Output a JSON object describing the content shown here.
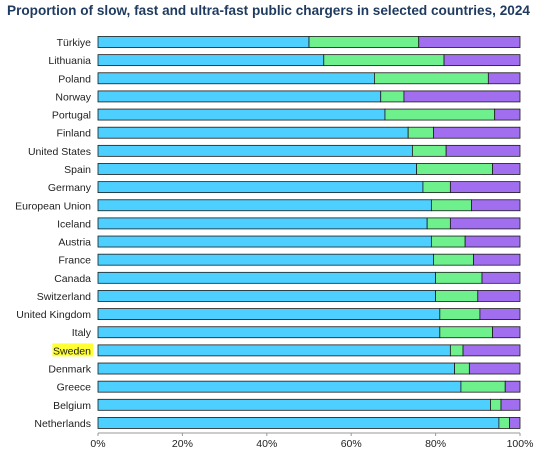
{
  "title": "Proportion of slow, fast and ultra-fast public chargers in selected countries, 2024",
  "highlight_category": "Sweden",
  "colors": {
    "slow": "#4dcfff",
    "fast": "#6ef08c",
    "ultra_fast": "#a26ef0",
    "highlight": "#ffff33"
  },
  "chart_data": {
    "type": "bar",
    "orientation": "horizontal",
    "stacked": true,
    "title": "Proportion of slow, fast and ultra-fast public chargers in selected countries, 2024",
    "xlim": [
      0,
      100
    ],
    "x_ticks": [
      "0%",
      "20%",
      "40%",
      "60%",
      "80%",
      "100%"
    ],
    "grid": false,
    "legend": "none",
    "categories": [
      "Türkiye",
      "Lithuania",
      "Poland",
      "Norway",
      "Portugal",
      "Finland",
      "United States",
      "Spain",
      "Germany",
      "European Union",
      "Iceland",
      "Austria",
      "France",
      "Canada",
      "Switzerland",
      "United Kingdom",
      "Italy",
      "Sweden",
      "Denmark",
      "Greece",
      "Belgium",
      "Netherlands"
    ],
    "series": [
      {
        "key": "slow",
        "values": [
          50,
          53.5,
          65.5,
          67,
          68,
          73.5,
          74.5,
          75.5,
          77,
          79,
          78,
          79,
          79.5,
          80,
          80,
          81,
          81,
          83.5,
          84.5,
          86,
          93,
          95
        ]
      },
      {
        "key": "fast",
        "values": [
          26,
          28.5,
          27,
          5.5,
          26,
          6,
          8,
          18,
          6.5,
          9.5,
          5.5,
          8,
          9.5,
          11,
          10,
          9.5,
          12.5,
          3,
          3.5,
          10.5,
          2.5,
          2.5
        ]
      },
      {
        "key": "ultra_fast",
        "values": [
          24,
          18,
          7.5,
          27.5,
          6,
          20.5,
          17.5,
          6.5,
          16.5,
          11.5,
          16.5,
          13,
          11,
          9,
          10,
          9.5,
          6.5,
          13.5,
          12,
          3.5,
          4.5,
          2.5
        ]
      }
    ]
  }
}
